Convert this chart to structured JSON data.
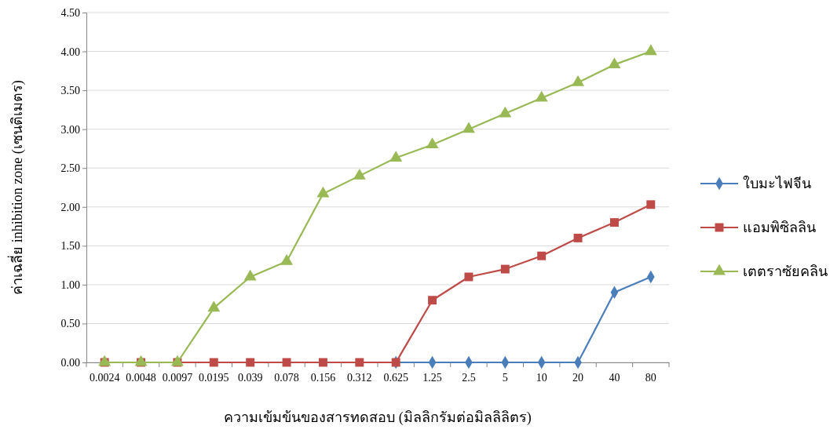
{
  "chart_data": {
    "type": "line",
    "xlabel": "ความเข้มข้นของสารทดสอบ (มิลลิกรัมต่อมิลลิลิตร)",
    "ylabel": "ค่าเฉลี่ย inhibition zone (เซนติเมตร)",
    "categories": [
      "0.0024",
      "0.0048",
      "0.0097",
      "0.0195",
      "0.039",
      "0.078",
      "0.156",
      "0.312",
      "0.625",
      "1.25",
      "2.5",
      "5",
      "10",
      "20",
      "40",
      "80"
    ],
    "series": [
      {
        "name": "ใบมะไฟจีน",
        "color": "#4a7ebb",
        "marker": "diamond",
        "values": [
          null,
          null,
          null,
          null,
          null,
          null,
          null,
          null,
          0,
          0,
          0,
          0,
          0,
          0,
          0.9,
          1.1
        ]
      },
      {
        "name": "แอมพิซิลลิน",
        "color": "#be4b48",
        "marker": "square",
        "values": [
          0,
          0,
          0,
          0,
          0,
          0,
          0,
          0,
          0,
          0.8,
          1.1,
          1.2,
          1.37,
          1.6,
          1.8,
          2.03
        ]
      },
      {
        "name": "เตตราซัยคลิน",
        "color": "#98b954",
        "marker": "triangle",
        "values": [
          0,
          0,
          0,
          0.7,
          1.1,
          1.3,
          2.17,
          2.4,
          2.63,
          2.8,
          3.0,
          3.2,
          3.4,
          3.6,
          3.83,
          4.0
        ]
      }
    ],
    "ylim": [
      0,
      4.5
    ],
    "yticks": [
      {
        "value": 0,
        "label": "0.00"
      },
      {
        "value": 0.5,
        "label": "0.50"
      },
      {
        "value": 1,
        "label": "1.00"
      },
      {
        "value": 1.5,
        "label": "1.50"
      },
      {
        "value": 2,
        "label": "2.00"
      },
      {
        "value": 2.5,
        "label": "2.50"
      },
      {
        "value": 3,
        "label": "3.00"
      },
      {
        "value": 3.5,
        "label": "3.50"
      },
      {
        "value": 4,
        "label": "4.00"
      },
      {
        "value": 4.5,
        "label": "4.50"
      }
    ],
    "grid": "y",
    "legend": "right"
  }
}
